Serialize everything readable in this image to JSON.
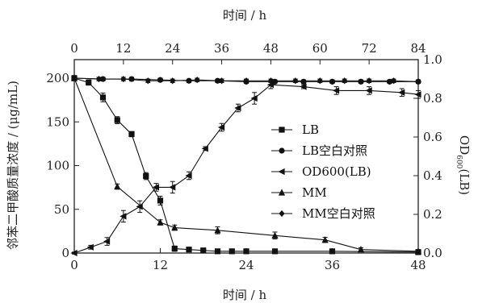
{
  "chart_data": {
    "type": "line",
    "x_bottom": {
      "label": "时间 / h",
      "ticks": [
        0,
        12,
        24,
        36,
        48
      ],
      "range": [
        0,
        48
      ]
    },
    "x_top": {
      "label": "时间 / h",
      "ticks": [
        0,
        12,
        24,
        36,
        48,
        60,
        72,
        84
      ],
      "range": [
        0,
        84
      ]
    },
    "y_left": {
      "label": "邻苯二甲酸质量浓度 / (μg/mL)",
      "ticks": [
        0,
        50,
        100,
        150,
        200
      ],
      "range": [
        0,
        215
      ]
    },
    "y_right": {
      "label_main": "OD",
      "label_sub": "600",
      "label_tail": "(LB)",
      "ticks": [
        "0.0",
        "0.2",
        "0.4",
        "0.6",
        "0.8",
        "1.0"
      ],
      "range": [
        0,
        1.0
      ]
    },
    "series": [
      {
        "name": "LB",
        "marker": "square",
        "axis_x": "bottom",
        "axis_y": "left",
        "x": [
          0,
          2,
          4,
          6,
          8,
          10,
          12,
          14,
          16,
          18,
          20,
          22,
          24,
          28,
          36,
          48
        ],
        "y": [
          200,
          195,
          178,
          152,
          136,
          88,
          60,
          5,
          4,
          3,
          2,
          2,
          2,
          2,
          2,
          1
        ],
        "err": [
          3,
          3,
          5,
          4,
          3,
          4,
          5,
          3,
          2,
          2,
          2,
          2,
          2,
          2,
          2,
          2
        ]
      },
      {
        "name": "LB空白对照",
        "marker": "circle",
        "axis_x": "bottom",
        "axis_y": "left",
        "x": [
          0,
          4,
          8,
          12,
          16,
          20,
          24,
          28,
          32,
          36,
          40,
          44,
          48
        ],
        "y": [
          200,
          199,
          199,
          198,
          197,
          197,
          196,
          196,
          196,
          196,
          196,
          196,
          196
        ],
        "err": [
          2,
          2,
          2,
          2,
          2,
          2,
          2,
          2,
          2,
          2,
          2,
          2,
          2
        ]
      },
      {
        "name": "OD600(LB)",
        "marker": "triangle-left",
        "axis_x": "top",
        "axis_y": "right",
        "x": [
          0,
          4,
          8,
          12,
          16,
          20,
          24,
          28,
          32,
          36,
          40,
          44,
          48,
          56,
          64,
          72,
          80,
          84
        ],
        "y": [
          0.0,
          0.03,
          0.06,
          0.19,
          0.24,
          0.34,
          0.34,
          0.4,
          0.54,
          0.65,
          0.75,
          0.8,
          0.87,
          0.86,
          0.84,
          0.84,
          0.83,
          0.82
        ],
        "err": [
          0.005,
          0.01,
          0.02,
          0.03,
          0.03,
          0.02,
          0.03,
          0.02,
          0.01,
          0.02,
          0.02,
          0.03,
          0.02,
          0.01,
          0.02,
          0.02,
          0.02,
          0.02
        ]
      },
      {
        "name": "MM",
        "marker": "triangle-up",
        "axis_x": "bottom",
        "axis_y": "left",
        "x": [
          0,
          6,
          12,
          14,
          20,
          28,
          35,
          40,
          48
        ],
        "y": [
          200,
          76,
          35,
          29,
          26,
          20,
          15,
          4,
          2
        ],
        "err": [
          2,
          3,
          3,
          3,
          4,
          4,
          3,
          2,
          2
        ]
      },
      {
        "name": "MM空白对照",
        "marker": "diamond",
        "axis_x": "top",
        "axis_y": "left",
        "x": [
          0,
          6,
          12,
          18,
          24,
          30,
          36,
          42,
          48,
          54,
          60,
          66,
          72,
          78,
          84
        ],
        "y": [
          200,
          199,
          199,
          197,
          197,
          198,
          197,
          197,
          197,
          197,
          197,
          197,
          197,
          197,
          196
        ],
        "err": [
          2,
          2,
          2,
          2,
          2,
          2,
          2,
          2,
          2,
          2,
          2,
          2,
          2,
          2,
          2
        ]
      }
    ],
    "legend_placement": "center-right",
    "grid": false
  }
}
